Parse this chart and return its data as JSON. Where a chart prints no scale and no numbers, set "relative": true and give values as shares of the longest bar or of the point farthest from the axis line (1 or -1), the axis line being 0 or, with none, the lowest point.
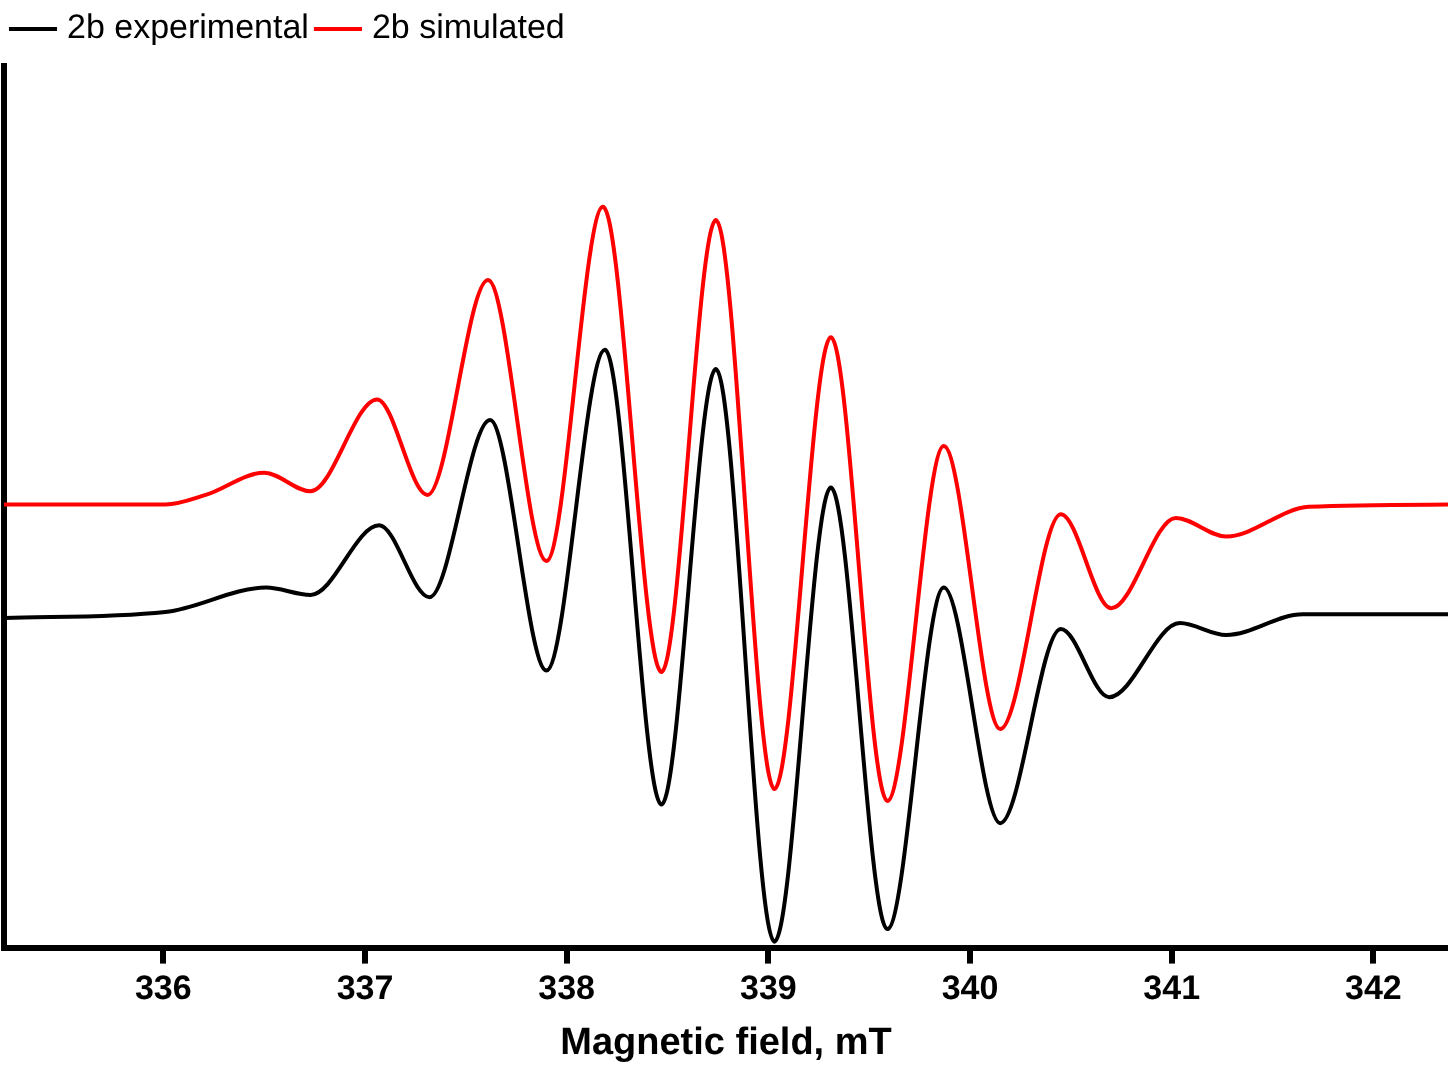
{
  "chart_data": {
    "type": "line",
    "xlabel": "Magnetic field, mT",
    "relative": true,
    "legend": "top left",
    "grid": false,
    "xlim": [
      335.21,
      342.37
    ],
    "xticks": [
      336,
      337,
      338,
      339,
      340,
      341,
      342
    ],
    "series": [
      {
        "name": "2b experimental",
        "color": "#000000",
        "x": [
          335.21,
          336.01,
          336.51,
          336.73,
          337.07,
          337.32,
          337.62,
          337.9,
          338.19,
          338.47,
          338.74,
          339.03,
          339.31,
          339.59,
          339.87,
          340.15,
          340.45,
          340.69,
          341.04,
          341.27,
          341.65,
          342.37
        ],
        "values": [
          0.445,
          0.453,
          0.486,
          0.476,
          0.57,
          0.473,
          0.712,
          0.374,
          0.807,
          0.193,
          0.781,
          0.008,
          0.621,
          0.025,
          0.486,
          0.168,
          0.43,
          0.338,
          0.438,
          0.422,
          0.45,
          0.45
        ]
      },
      {
        "name": "2b simulated",
        "color": "#ff0000",
        "x": [
          335.21,
          336.01,
          336.21,
          336.5,
          336.73,
          337.06,
          337.31,
          337.61,
          337.9,
          338.18,
          338.47,
          338.74,
          339.03,
          339.31,
          339.59,
          339.87,
          340.15,
          340.45,
          340.7,
          341.02,
          341.27,
          341.68,
          342.37
        ],
        "values": [
          0.598,
          0.598,
          0.611,
          0.641,
          0.616,
          0.74,
          0.611,
          0.901,
          0.522,
          1,
          0.372,
          0.982,
          0.214,
          0.824,
          0.198,
          0.677,
          0.295,
          0.585,
          0.458,
          0.58,
          0.555,
          0.595,
          0.598
        ]
      }
    ]
  }
}
